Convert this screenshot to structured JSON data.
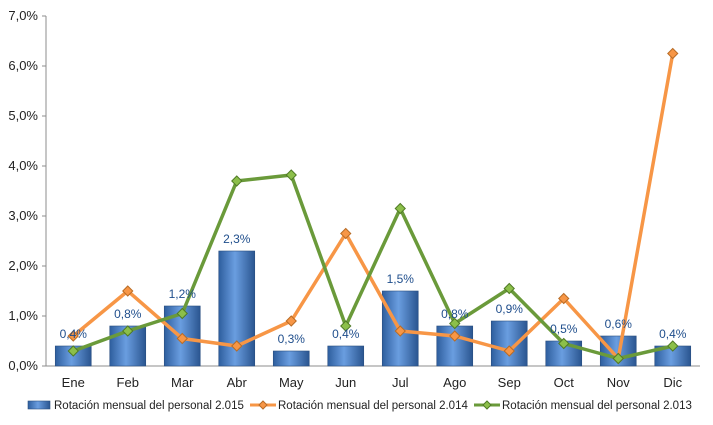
{
  "chart_data": {
    "type": "bar",
    "categories": [
      "Ene",
      "Feb",
      "Mar",
      "Abr",
      "May",
      "Jun",
      "Jul",
      "Ago",
      "Sep",
      "Oct",
      "Nov",
      "Dic"
    ],
    "ylim": [
      0,
      7.0
    ],
    "yticks": [
      "0,0%",
      "1,0%",
      "2,0%",
      "3,0%",
      "4,0%",
      "5,0%",
      "6,0%",
      "7,0%"
    ],
    "ytick_values": [
      0,
      1,
      2,
      3,
      4,
      5,
      6,
      7
    ],
    "grid": false,
    "legend_position": "bottom",
    "series": [
      {
        "name": "Rotación mensual del personal 2.015",
        "type": "bar",
        "color": "#4a7fc7",
        "values": [
          0.4,
          0.8,
          1.2,
          2.3,
          0.3,
          0.4,
          1.5,
          0.8,
          0.9,
          0.5,
          0.6,
          0.4
        ],
        "data_labels": [
          "0,4%",
          "0,8%",
          "1,2%",
          "2,3%",
          "0,3%",
          "0,4%",
          "1,5%",
          "0,8%",
          "0,9%",
          "0,5%",
          "0,6%",
          "0,4%"
        ]
      },
      {
        "name": "Rotación mensual del personal 2.014",
        "type": "line",
        "color": "#f79646",
        "values": [
          0.6,
          1.5,
          0.55,
          0.4,
          0.9,
          2.65,
          0.7,
          0.6,
          0.3,
          1.35,
          0.15,
          6.25
        ]
      },
      {
        "name": "Rotación mensual del personal 2.013",
        "type": "line",
        "color": "#6a9a3a",
        "values": [
          0.3,
          0.7,
          1.05,
          3.7,
          3.82,
          0.8,
          3.15,
          0.85,
          1.55,
          0.45,
          0.15,
          0.4
        ]
      }
    ]
  }
}
